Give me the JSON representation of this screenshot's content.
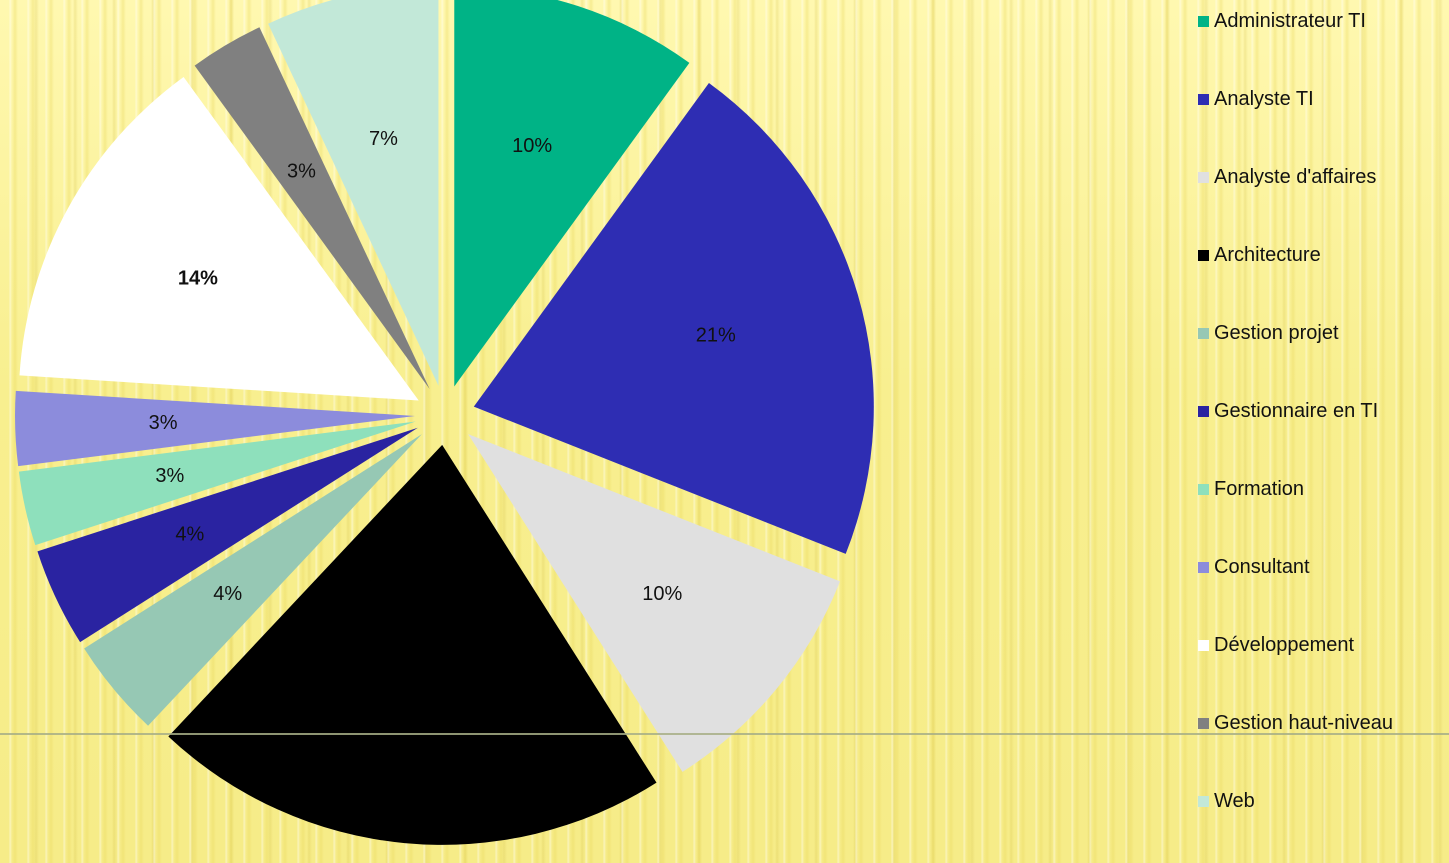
{
  "chart_data": {
    "type": "pie",
    "exploded": true,
    "legend_position": "right",
    "slices": [
      {
        "name": "Administrateur TI",
        "value": 10,
        "label": "10%",
        "color": "#00b386"
      },
      {
        "name": "Analyste TI",
        "value": 21,
        "label": "21%",
        "color": "#2e2db3"
      },
      {
        "name": "Analyste d'affaires",
        "value": 10,
        "label": "10%",
        "color": "#e0e0e0"
      },
      {
        "name": "Architecture",
        "value": 21,
        "label": "",
        "color": "#000000"
      },
      {
        "name": "Gestion projet",
        "value": 4,
        "label": "4%",
        "color": "#96c8b4"
      },
      {
        "name": "Gestionnaire en TI",
        "value": 4,
        "label": "4%",
        "color": "#2a23a1"
      },
      {
        "name": "Formation",
        "value": 3,
        "label": "3%",
        "color": "#8ee0bc"
      },
      {
        "name": "Consultant",
        "value": 3,
        "label": "3%",
        "color": "#8c8cdc"
      },
      {
        "name": "Développement",
        "value": 14,
        "label": "14%",
        "color": "#ffffff",
        "label_bold": true
      },
      {
        "name": "Gestion haut-niveau",
        "value": 3,
        "label": "3%",
        "color": "#808080"
      },
      {
        "name": "Web",
        "value": 7,
        "label": "7%",
        "color": "#c2e8d8"
      }
    ]
  }
}
